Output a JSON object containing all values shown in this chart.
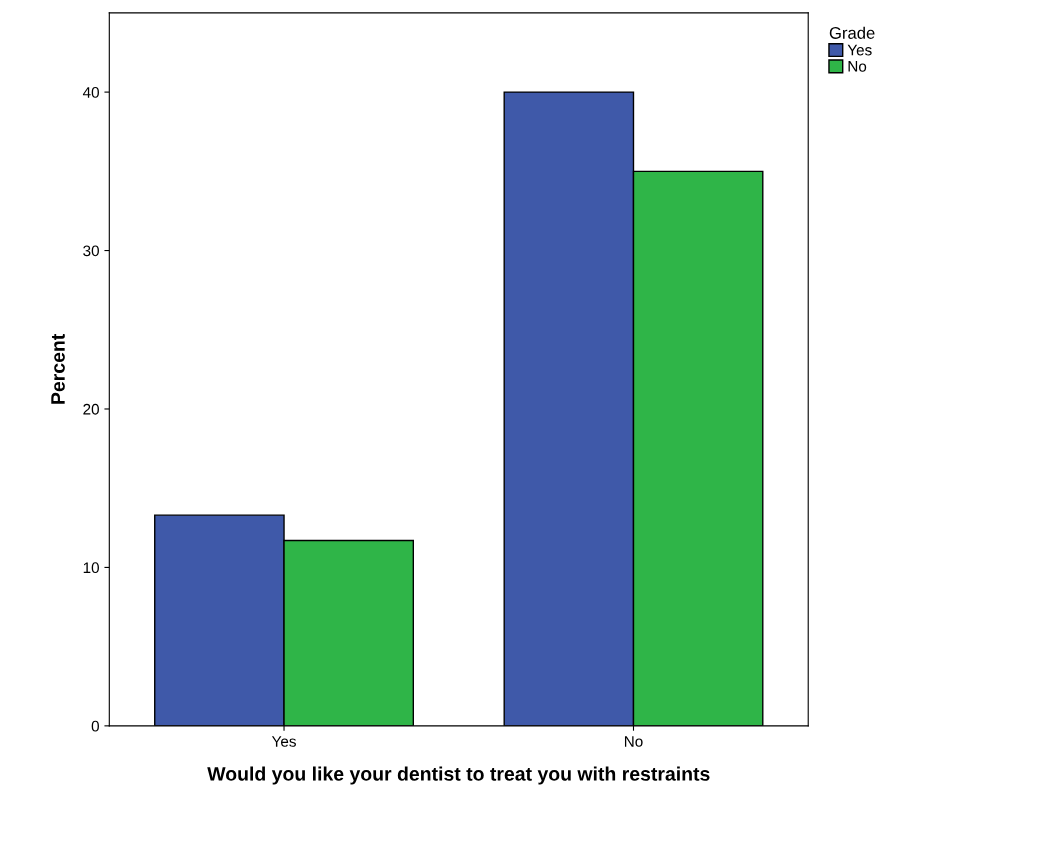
{
  "chart_data": {
    "type": "bar",
    "xlabel": "Would you like your dentist to treat you with restraints",
    "ylabel": "Percent",
    "legend_title": "Grade",
    "categories": [
      "Yes",
      "No"
    ],
    "series": [
      {
        "name": "Yes",
        "color": "#3f59a9",
        "values": [
          13.3,
          40.0
        ]
      },
      {
        "name": "No",
        "color": "#2fb548",
        "values": [
          11.7,
          35.0
        ]
      }
    ],
    "ylim": [
      0,
      45
    ],
    "yticks": [
      0,
      10,
      20,
      30,
      40
    ],
    "grid": false,
    "legend": "top right"
  }
}
